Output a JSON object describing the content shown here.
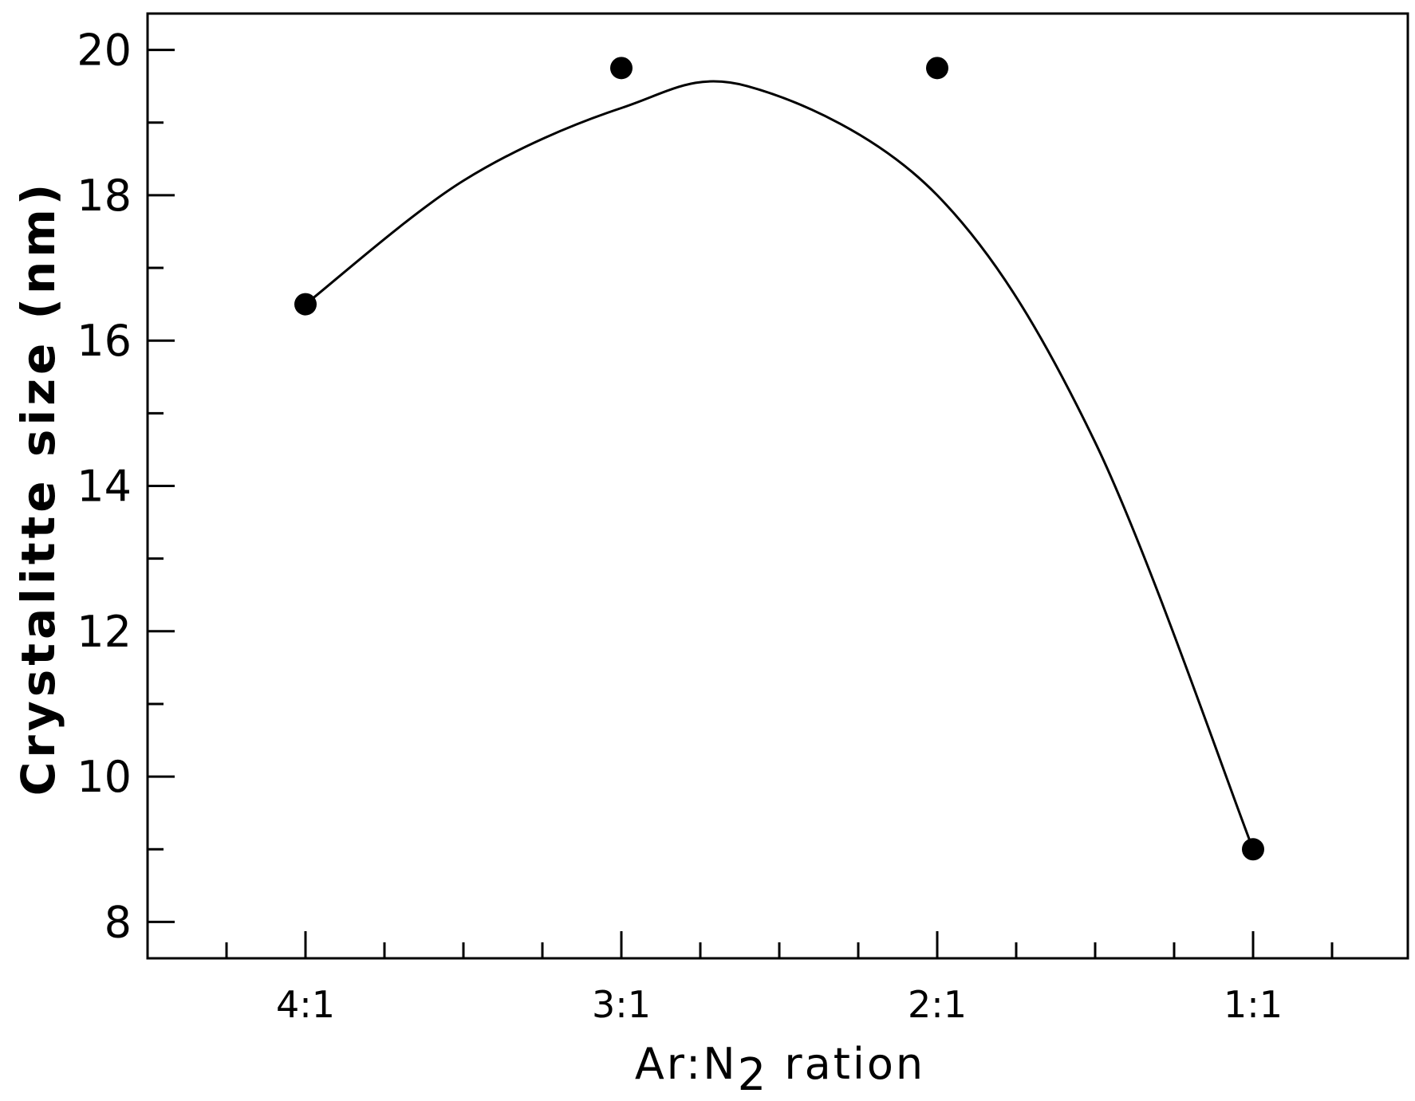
{
  "chart_data": {
    "type": "scatter",
    "xlabel": "Ar:N",
    "xlabel_sub": "2",
    "xlabel_suffix": " ration",
    "ylabel": "Crystalitte size (nm)",
    "categories": [
      "4:1",
      "3:1",
      "2:1",
      "1:1"
    ],
    "yticks": [
      8,
      10,
      12,
      14,
      16,
      18,
      20
    ],
    "ylim": [
      7.5,
      20.5
    ],
    "grid": false,
    "series": [
      {
        "values": [
          16.5,
          19.75,
          19.75,
          9.0
        ],
        "marker": "circle",
        "color": "#000000"
      }
    ],
    "fit_curve": {
      "note_shown": false,
      "x": [
        0,
        0.5,
        1.0,
        1.4,
        2.0,
        2.5,
        3.0
      ],
      "y": [
        16.5,
        18.2,
        19.2,
        19.5,
        18.0,
        14.6,
        9.0
      ]
    }
  }
}
